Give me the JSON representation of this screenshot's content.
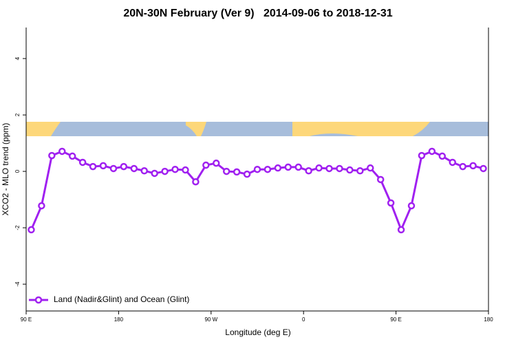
{
  "chart_data": {
    "type": "line",
    "title": "20N-30N February (Ver 9)   2014-09-06 to 2018-12-31",
    "x_label": "Longitude (deg E)",
    "y_label": "XCO2 - MLO trend (ppm)",
    "x": [
      95,
      105,
      115,
      125,
      135,
      145,
      155,
      165,
      175,
      185,
      195,
      205,
      215,
      225,
      235,
      245,
      255,
      265,
      275,
      285,
      295,
      305,
      315,
      325,
      335,
      345,
      355,
      365,
      375,
      385,
      395,
      405,
      415,
      425,
      435,
      445,
      455,
      465,
      475,
      485,
      495,
      505,
      515,
      525,
      535
    ],
    "series": [
      {
        "name": "Land (Nadir&Glint) and Ocean (Glint)",
        "color": "#a020f0",
        "values": [
          -2.07,
          -1.22,
          0.56,
          0.71,
          0.54,
          0.32,
          0.17,
          0.2,
          0.1,
          0.17,
          0.1,
          0.02,
          -0.07,
          0.0,
          0.07,
          0.05,
          -0.37,
          0.22,
          0.29,
          0,
          -0.02,
          -0.1,
          0.07,
          0.07,
          0.12,
          0.15,
          0.15,
          0.02,
          0.12,
          0.1,
          0.1,
          0.05,
          0.02,
          0.12,
          -0.29,
          -1.12,
          -2.07,
          -1.22,
          0.56,
          0.71,
          0.54,
          0.32,
          0.17,
          0.2,
          0.1
        ]
      }
    ],
    "xlim": [
      90,
      540
    ],
    "xticks": [
      {
        "value": 90,
        "label": "90 E"
      },
      180,
      {
        "value": 270,
        "label": "90 W"
      },
      {
        "value": 360,
        "label": "0"
      },
      {
        "value": 450,
        "label": "90 E"
      },
      {
        "value": 540,
        "label": "180"
      }
    ],
    "ylim": [
      -4.95,
      5.1
    ],
    "yticks": [
      -4,
      -2,
      0,
      2,
      4
    ],
    "legend": "bottom-left"
  }
}
